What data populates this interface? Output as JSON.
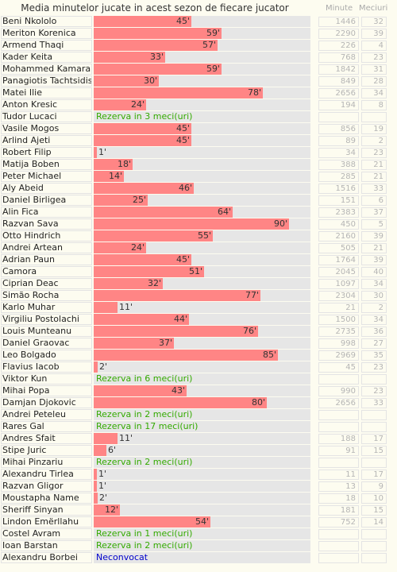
{
  "header": {
    "title": "Media minutelor jucate in acest sezon de fiecare jucator",
    "minute_label": "Minute",
    "meciuri_label": "Meciuri"
  },
  "colors": {
    "bar": "#ff8585",
    "reserve": "#33aa00",
    "unselected": "#0000cc"
  },
  "players": [
    {
      "name": "Beni Nkololo",
      "avg": "45'",
      "pct": 45,
      "minutes": "1446",
      "matches": "32"
    },
    {
      "name": "Meriton Korenica",
      "avg": "59'",
      "pct": 59,
      "minutes": "2290",
      "matches": "39"
    },
    {
      "name": "Armend Thaqi",
      "avg": "57'",
      "pct": 57,
      "minutes": "226",
      "matches": "4"
    },
    {
      "name": "Kader Keita",
      "avg": "33'",
      "pct": 33,
      "minutes": "768",
      "matches": "23"
    },
    {
      "name": "Mohammed Kamara",
      "avg": "59'",
      "pct": 59,
      "minutes": "1842",
      "matches": "31"
    },
    {
      "name": "Panagiotis Tachtsidis",
      "avg": "30'",
      "pct": 30,
      "minutes": "849",
      "matches": "28"
    },
    {
      "name": "Matei Ilie",
      "avg": "78'",
      "pct": 78,
      "minutes": "2656",
      "matches": "34"
    },
    {
      "name": "Anton Kresic",
      "avg": "24'",
      "pct": 24,
      "minutes": "194",
      "matches": "8"
    },
    {
      "name": "Tudor Lucaci",
      "note": "Rezerva in 3 meci(uri)",
      "noteType": "reserve"
    },
    {
      "name": "Vasile Mogos",
      "avg": "45'",
      "pct": 45,
      "minutes": "856",
      "matches": "19"
    },
    {
      "name": "Arlind Ajeti",
      "avg": "45'",
      "pct": 45,
      "minutes": "89",
      "matches": "2"
    },
    {
      "name": "Robert Filip",
      "avg": "1'",
      "pct": 1,
      "minutes": "34",
      "matches": "23"
    },
    {
      "name": "Matija Boben",
      "avg": "18'",
      "pct": 18,
      "minutes": "388",
      "matches": "21"
    },
    {
      "name": "Peter Michael",
      "avg": "14'",
      "pct": 14,
      "minutes": "285",
      "matches": "21"
    },
    {
      "name": "Aly Abeid",
      "avg": "46'",
      "pct": 46,
      "minutes": "1516",
      "matches": "33"
    },
    {
      "name": "Daniel Birligea",
      "avg": "25'",
      "pct": 25,
      "minutes": "151",
      "matches": "6"
    },
    {
      "name": "Alin Fica",
      "avg": "64'",
      "pct": 64,
      "minutes": "2383",
      "matches": "37"
    },
    {
      "name": "Razvan Sava",
      "avg": "90'",
      "pct": 90,
      "minutes": "450",
      "matches": "5"
    },
    {
      "name": "Otto Hindrich",
      "avg": "55'",
      "pct": 55,
      "minutes": "2160",
      "matches": "39"
    },
    {
      "name": "Andrei Artean",
      "avg": "24'",
      "pct": 24,
      "minutes": "505",
      "matches": "21"
    },
    {
      "name": "Adrian Paun",
      "avg": "45'",
      "pct": 45,
      "minutes": "1764",
      "matches": "39"
    },
    {
      "name": "Camora",
      "avg": "51'",
      "pct": 51,
      "minutes": "2045",
      "matches": "40"
    },
    {
      "name": "Ciprian Deac",
      "avg": "32'",
      "pct": 32,
      "minutes": "1097",
      "matches": "34"
    },
    {
      "name": "Simão Rocha",
      "avg": "77'",
      "pct": 77,
      "minutes": "2304",
      "matches": "30"
    },
    {
      "name": "Karlo Muhar",
      "avg": "11'",
      "pct": 11,
      "minutes": "21",
      "matches": "2"
    },
    {
      "name": "Virgiliu Postolachi",
      "avg": "44'",
      "pct": 44,
      "minutes": "1500",
      "matches": "34"
    },
    {
      "name": "Louis Munteanu",
      "avg": "76'",
      "pct": 76,
      "minutes": "2735",
      "matches": "36"
    },
    {
      "name": "Daniel Graovac",
      "avg": "37'",
      "pct": 37,
      "minutes": "998",
      "matches": "27"
    },
    {
      "name": "Leo Bolgado",
      "avg": "85'",
      "pct": 85,
      "minutes": "2969",
      "matches": "35"
    },
    {
      "name": "Flavius Iacob",
      "avg": "2'",
      "pct": 2,
      "minutes": "45",
      "matches": "23"
    },
    {
      "name": "Viktor Kun",
      "note": "Rezerva in 6 meci(uri)",
      "noteType": "reserve"
    },
    {
      "name": "Mihai Popa",
      "avg": "43'",
      "pct": 43,
      "minutes": "990",
      "matches": "23"
    },
    {
      "name": "Damjan Djokovic",
      "avg": "80'",
      "pct": 80,
      "minutes": "2656",
      "matches": "33"
    },
    {
      "name": "Andrei Peteleu",
      "note": "Rezerva in 2 meci(uri)",
      "noteType": "reserve"
    },
    {
      "name": "Rares Gal",
      "note": "Rezerva in 17 meci(uri)",
      "noteType": "reserve"
    },
    {
      "name": "Andres Sfait",
      "avg": "11'",
      "pct": 11,
      "minutes": "188",
      "matches": "17"
    },
    {
      "name": "Stipe Juric",
      "avg": "6'",
      "pct": 6,
      "minutes": "91",
      "matches": "15"
    },
    {
      "name": "Mihai Pinzariu",
      "note": "Rezerva in 2 meci(uri)",
      "noteType": "reserve"
    },
    {
      "name": "Alexandru Tirlea",
      "avg": "1'",
      "pct": 1,
      "minutes": "11",
      "matches": "17"
    },
    {
      "name": "Razvan Gligor",
      "avg": "1'",
      "pct": 1,
      "minutes": "13",
      "matches": "9"
    },
    {
      "name": "Moustapha Name",
      "avg": "2'",
      "pct": 2,
      "minutes": "18",
      "matches": "10"
    },
    {
      "name": "Sheriff Sinyan",
      "avg": "12'",
      "pct": 12,
      "minutes": "181",
      "matches": "15"
    },
    {
      "name": "Lindon Emërllahu",
      "avg": "54'",
      "pct": 54,
      "minutes": "752",
      "matches": "14"
    },
    {
      "name": "Costel Avram",
      "note": "Rezerva in 1 meci(uri)",
      "noteType": "reserve"
    },
    {
      "name": "Ioan Barstan",
      "note": "Rezerva in 2 meci(uri)",
      "noteType": "reserve"
    },
    {
      "name": "Alexandru Borbei",
      "note": "Neconvocat",
      "noteType": "unselected"
    }
  ]
}
